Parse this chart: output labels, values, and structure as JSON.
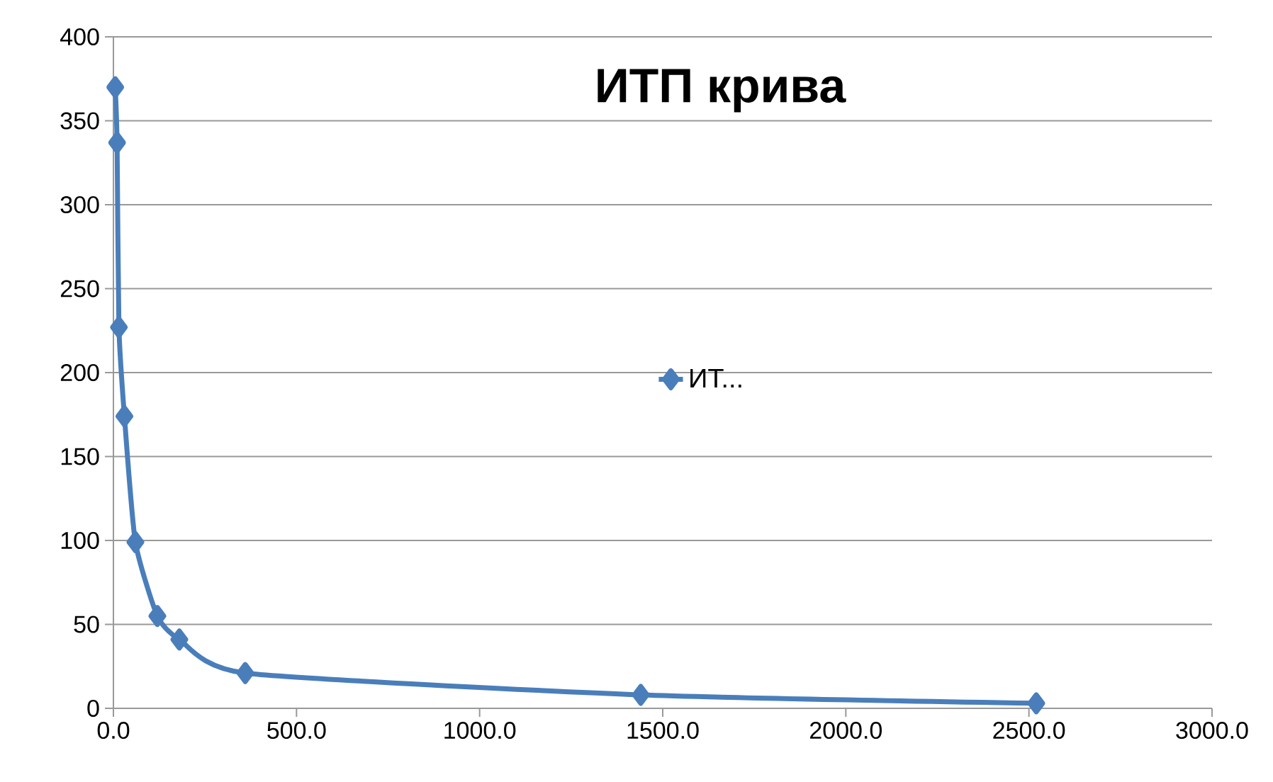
{
  "chart_data": {
    "type": "line",
    "title": "ИТП крива",
    "x": [
      5,
      10,
      15,
      30,
      60,
      120,
      180,
      360,
      1440,
      2520
    ],
    "series": [
      {
        "name": "ИТ...",
        "color": "#4a7ebb",
        "values": [
          370,
          337,
          227,
          174,
          99,
          55,
          41,
          21,
          8,
          3
        ]
      }
    ],
    "xlim": [
      0,
      3000
    ],
    "xticks": [
      {
        "value": 0,
        "label": "0.0"
      },
      {
        "value": 500,
        "label": "500.0"
      },
      {
        "value": 1000,
        "label": "1000.0"
      },
      {
        "value": 1500,
        "label": "1500.0"
      },
      {
        "value": 2000,
        "label": "2000.0"
      },
      {
        "value": 2500,
        "label": "2500.0"
      },
      {
        "value": 3000,
        "label": "3000.0"
      }
    ],
    "ylim": [
      0,
      400
    ],
    "yticks": [
      0,
      50,
      100,
      150,
      200,
      250,
      300,
      350,
      400
    ],
    "grid": "y",
    "legend": "center",
    "marker": "diamond",
    "line_style": "solid"
  }
}
